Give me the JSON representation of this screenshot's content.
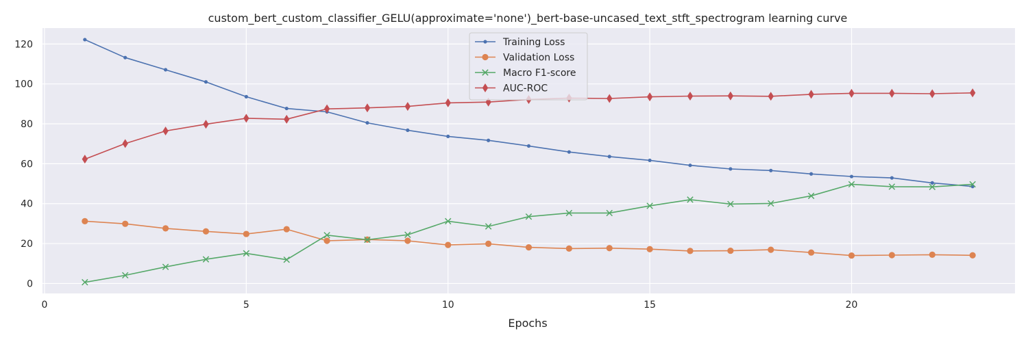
{
  "chart_data": {
    "type": "line",
    "title": "custom_bert_custom_classifier_GELU(approximate='none')_bert-base-uncased_text_stft_spectrogram learning curve",
    "xlabel": "Epochs",
    "ylabel": "",
    "xlim": [
      -0.05,
      24.05
    ],
    "ylim": [
      -5,
      128
    ],
    "xticks": [
      0,
      5,
      10,
      15,
      20
    ],
    "yticks": [
      0,
      20,
      40,
      60,
      80,
      100,
      120
    ],
    "grid": true,
    "legend_position": "upper center",
    "x": [
      1,
      2,
      3,
      4,
      5,
      6,
      7,
      8,
      9,
      10,
      11,
      12,
      13,
      14,
      15,
      16,
      17,
      18,
      19,
      20,
      21,
      22,
      23
    ],
    "series": [
      {
        "name": "Training Loss",
        "color": "#4c72b0",
        "marker": "dot",
        "values": [
          122.2,
          113.2,
          107.1,
          101.0,
          93.6,
          87.7,
          86.0,
          80.5,
          76.8,
          73.7,
          71.7,
          68.9,
          65.9,
          63.6,
          61.7,
          59.2,
          57.4,
          56.6,
          54.9,
          53.6,
          52.9,
          50.4,
          48.6
        ]
      },
      {
        "name": "Validation Loss",
        "color": "#dd8452",
        "marker": "circle",
        "values": [
          31.2,
          29.9,
          27.6,
          26.1,
          24.8,
          27.2,
          21.4,
          22.0,
          21.4,
          19.3,
          19.9,
          18.1,
          17.5,
          17.7,
          17.2,
          16.3,
          16.4,
          16.9,
          15.5,
          14.0,
          14.2,
          14.4,
          14.1
        ]
      },
      {
        "name": "Macro F1-score",
        "color": "#55a868",
        "marker": "x",
        "values": [
          0.6,
          4.1,
          8.3,
          12.1,
          15.1,
          11.9,
          24.2,
          21.9,
          24.4,
          31.2,
          28.6,
          33.5,
          35.3,
          35.3,
          38.9,
          42.0,
          39.8,
          40.1,
          43.9,
          49.7,
          48.5,
          48.4,
          49.7
        ]
      },
      {
        "name": "AUC-ROC",
        "color": "#c44e52",
        "marker": "diamond",
        "values": [
          62.3,
          70.1,
          76.4,
          79.8,
          82.8,
          82.3,
          87.5,
          88.0,
          88.7,
          90.5,
          90.9,
          92.2,
          92.9,
          92.7,
          93.5,
          93.9,
          94.0,
          93.8,
          94.8,
          95.3,
          95.3,
          95.1,
          95.5
        ]
      }
    ]
  }
}
